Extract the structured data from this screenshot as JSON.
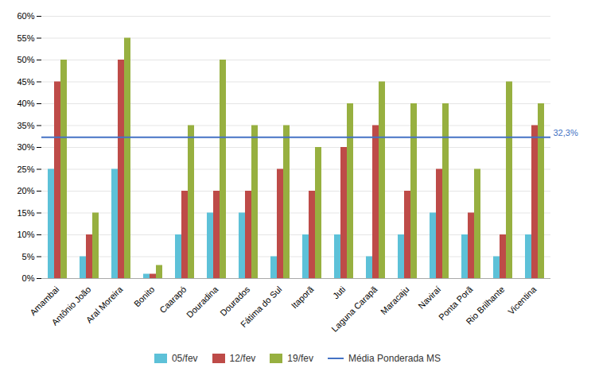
{
  "chart_data": {
    "type": "bar",
    "categories": [
      "Amambai",
      "Antônio João",
      "Aral Moreira",
      "Bonito",
      "Caarapó",
      "Douradina",
      "Dourados",
      "Fátima do Sul",
      "Itaporã",
      "Juti",
      "Laguna Carapã",
      "Maracaju",
      "Naviraí",
      "Ponta Porã",
      "Rio Brilhante",
      "Vicentina"
    ],
    "series": [
      {
        "name": "05/fev",
        "color": "#5DC1D8",
        "values": [
          25,
          5,
          25,
          1,
          10,
          15,
          15,
          5,
          10,
          10,
          5,
          10,
          15,
          10,
          5,
          10
        ]
      },
      {
        "name": "12/fev",
        "color": "#BE4B48",
        "values": [
          45,
          10,
          50,
          1,
          20,
          20,
          20,
          25,
          20,
          30,
          35,
          20,
          25,
          15,
          10,
          35
        ]
      },
      {
        "name": "19/fev",
        "color": "#97B040",
        "values": [
          50,
          15,
          55,
          3,
          35,
          50,
          35,
          35,
          30,
          40,
          45,
          40,
          40,
          25,
          45,
          40
        ]
      }
    ],
    "mean_line": {
      "name": "Média Ponderada MS",
      "value": 32.3,
      "label": "32,3%",
      "color": "#4472C4"
    },
    "ylim": [
      0,
      60
    ],
    "yticks": [
      {
        "value": 0,
        "label": "0%"
      },
      {
        "value": 5,
        "label": "5%"
      },
      {
        "value": 10,
        "label": "10%"
      },
      {
        "value": 15,
        "label": "15%"
      },
      {
        "value": 20,
        "label": "20%"
      },
      {
        "value": 25,
        "label": "25%"
      },
      {
        "value": 30,
        "label": "30%"
      },
      {
        "value": 35,
        "label": "35%"
      },
      {
        "value": 40,
        "label": "40%"
      },
      {
        "value": 45,
        "label": "45%"
      },
      {
        "value": 50,
        "label": "50%"
      },
      {
        "value": 55,
        "label": "55%"
      },
      {
        "value": 60,
        "label": "60%"
      }
    ],
    "grid": true,
    "legend": "bottom"
  }
}
